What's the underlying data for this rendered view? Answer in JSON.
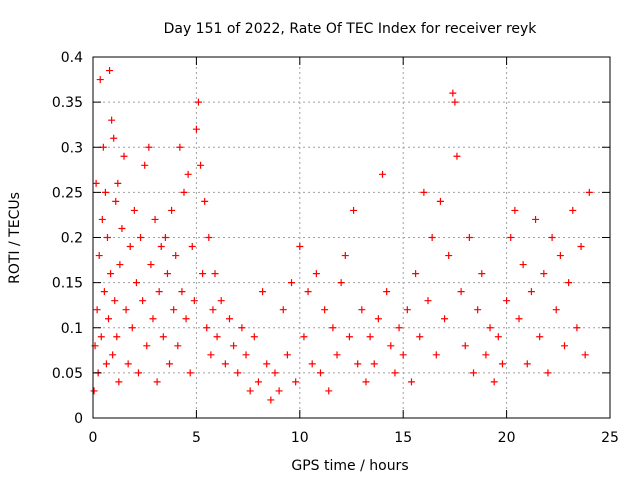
{
  "chart_data": {
    "type": "scatter",
    "title": "Day 151 of 2022, Rate Of TEC Index for receiver reyk",
    "xlabel": "GPS time / hours",
    "ylabel": "ROTI / TECUs",
    "xlim": [
      0,
      25
    ],
    "ylim": [
      0,
      0.4
    ],
    "xticks": [
      0,
      5,
      10,
      15,
      20,
      25
    ],
    "xtick_labels": [
      "0",
      "5",
      "10",
      "15",
      "20",
      "25"
    ],
    "yticks": [
      0,
      0.05,
      0.1,
      0.15,
      0.2,
      0.25,
      0.3,
      0.35,
      0.4
    ],
    "ytick_labels": [
      "0",
      "0.05",
      "0.1",
      "0.15",
      "0.2",
      "0.25",
      "0.3",
      "0.35",
      "0.4"
    ],
    "grid": true,
    "marker": "+",
    "color": "#ff0000",
    "series": [
      {
        "points": [
          [
            0.05,
            0.03
          ],
          [
            0.1,
            0.08
          ],
          [
            0.15,
            0.26
          ],
          [
            0.2,
            0.12
          ],
          [
            0.25,
            0.05
          ],
          [
            0.3,
            0.18
          ],
          [
            0.35,
            0.375
          ],
          [
            0.4,
            0.09
          ],
          [
            0.45,
            0.22
          ],
          [
            0.5,
            0.3
          ],
          [
            0.55,
            0.14
          ],
          [
            0.6,
            0.25
          ],
          [
            0.65,
            0.06
          ],
          [
            0.7,
            0.2
          ],
          [
            0.75,
            0.11
          ],
          [
            0.8,
            0.385
          ],
          [
            0.85,
            0.16
          ],
          [
            0.9,
            0.33
          ],
          [
            0.95,
            0.07
          ],
          [
            1.0,
            0.31
          ],
          [
            1.05,
            0.13
          ],
          [
            1.1,
            0.24
          ],
          [
            1.15,
            0.09
          ],
          [
            1.2,
            0.26
          ],
          [
            1.25,
            0.04
          ],
          [
            1.3,
            0.17
          ],
          [
            1.4,
            0.21
          ],
          [
            1.5,
            0.29
          ],
          [
            1.6,
            0.12
          ],
          [
            1.7,
            0.06
          ],
          [
            1.8,
            0.19
          ],
          [
            1.9,
            0.1
          ],
          [
            2.0,
            0.23
          ],
          [
            2.1,
            0.15
          ],
          [
            2.2,
            0.05
          ],
          [
            2.3,
            0.2
          ],
          [
            2.4,
            0.13
          ],
          [
            2.5,
            0.28
          ],
          [
            2.6,
            0.08
          ],
          [
            2.7,
            0.3
          ],
          [
            2.8,
            0.17
          ],
          [
            2.9,
            0.11
          ],
          [
            3.0,
            0.22
          ],
          [
            3.1,
            0.04
          ],
          [
            3.2,
            0.14
          ],
          [
            3.3,
            0.19
          ],
          [
            3.4,
            0.09
          ],
          [
            3.5,
            0.2
          ],
          [
            3.6,
            0.16
          ],
          [
            3.7,
            0.06
          ],
          [
            3.8,
            0.23
          ],
          [
            3.9,
            0.12
          ],
          [
            4.0,
            0.18
          ],
          [
            4.1,
            0.08
          ],
          [
            4.2,
            0.3
          ],
          [
            4.3,
            0.14
          ],
          [
            4.4,
            0.25
          ],
          [
            4.5,
            0.11
          ],
          [
            4.6,
            0.27
          ],
          [
            4.7,
            0.05
          ],
          [
            4.8,
            0.19
          ],
          [
            4.9,
            0.13
          ],
          [
            5.0,
            0.32
          ],
          [
            5.1,
            0.35
          ],
          [
            5.2,
            0.28
          ],
          [
            5.3,
            0.16
          ],
          [
            5.4,
            0.24
          ],
          [
            5.5,
            0.1
          ],
          [
            5.6,
            0.2
          ],
          [
            5.7,
            0.07
          ],
          [
            5.8,
            0.12
          ],
          [
            5.9,
            0.16
          ],
          [
            6.0,
            0.09
          ],
          [
            6.2,
            0.13
          ],
          [
            6.4,
            0.06
          ],
          [
            6.6,
            0.11
          ],
          [
            6.8,
            0.08
          ],
          [
            7.0,
            0.05
          ],
          [
            7.2,
            0.1
          ],
          [
            7.4,
            0.07
          ],
          [
            7.6,
            0.03
          ],
          [
            7.8,
            0.09
          ],
          [
            8.0,
            0.04
          ],
          [
            8.2,
            0.14
          ],
          [
            8.4,
            0.06
          ],
          [
            8.6,
            0.02
          ],
          [
            8.8,
            0.05
          ],
          [
            9.0,
            0.03
          ],
          [
            9.2,
            0.12
          ],
          [
            9.4,
            0.07
          ],
          [
            9.6,
            0.15
          ],
          [
            9.8,
            0.04
          ],
          [
            10.0,
            0.19
          ],
          [
            10.2,
            0.09
          ],
          [
            10.4,
            0.14
          ],
          [
            10.6,
            0.06
          ],
          [
            10.8,
            0.16
          ],
          [
            11.0,
            0.05
          ],
          [
            11.2,
            0.12
          ],
          [
            11.4,
            0.03
          ],
          [
            11.6,
            0.1
          ],
          [
            11.8,
            0.07
          ],
          [
            12.0,
            0.15
          ],
          [
            12.2,
            0.18
          ],
          [
            12.4,
            0.09
          ],
          [
            12.6,
            0.23
          ],
          [
            12.8,
            0.06
          ],
          [
            13.0,
            0.12
          ],
          [
            13.2,
            0.04
          ],
          [
            13.4,
            0.09
          ],
          [
            13.6,
            0.06
          ],
          [
            13.8,
            0.11
          ],
          [
            14.0,
            0.27
          ],
          [
            14.2,
            0.14
          ],
          [
            14.4,
            0.08
          ],
          [
            14.6,
            0.05
          ],
          [
            14.8,
            0.1
          ],
          [
            15.0,
            0.07
          ],
          [
            15.2,
            0.12
          ],
          [
            15.4,
            0.04
          ],
          [
            15.6,
            0.16
          ],
          [
            15.8,
            0.09
          ],
          [
            16.0,
            0.25
          ],
          [
            16.2,
            0.13
          ],
          [
            16.4,
            0.2
          ],
          [
            16.6,
            0.07
          ],
          [
            16.8,
            0.24
          ],
          [
            17.0,
            0.11
          ],
          [
            17.2,
            0.18
          ],
          [
            17.4,
            0.36
          ],
          [
            17.5,
            0.35
          ],
          [
            17.6,
            0.29
          ],
          [
            17.8,
            0.14
          ],
          [
            18.0,
            0.08
          ],
          [
            18.2,
            0.2
          ],
          [
            18.4,
            0.05
          ],
          [
            18.6,
            0.12
          ],
          [
            18.8,
            0.16
          ],
          [
            19.0,
            0.07
          ],
          [
            19.2,
            0.1
          ],
          [
            19.4,
            0.04
          ],
          [
            19.6,
            0.09
          ],
          [
            19.8,
            0.06
          ],
          [
            20.0,
            0.13
          ],
          [
            20.2,
            0.2
          ],
          [
            20.4,
            0.23
          ],
          [
            20.6,
            0.11
          ],
          [
            20.8,
            0.17
          ],
          [
            21.0,
            0.06
          ],
          [
            21.2,
            0.14
          ],
          [
            21.4,
            0.22
          ],
          [
            21.6,
            0.09
          ],
          [
            21.8,
            0.16
          ],
          [
            22.0,
            0.05
          ],
          [
            22.2,
            0.2
          ],
          [
            22.4,
            0.12
          ],
          [
            22.6,
            0.18
          ],
          [
            22.8,
            0.08
          ],
          [
            23.0,
            0.15
          ],
          [
            23.2,
            0.23
          ],
          [
            23.4,
            0.1
          ],
          [
            23.6,
            0.19
          ],
          [
            23.8,
            0.07
          ],
          [
            24.0,
            0.25
          ]
        ]
      }
    ]
  }
}
